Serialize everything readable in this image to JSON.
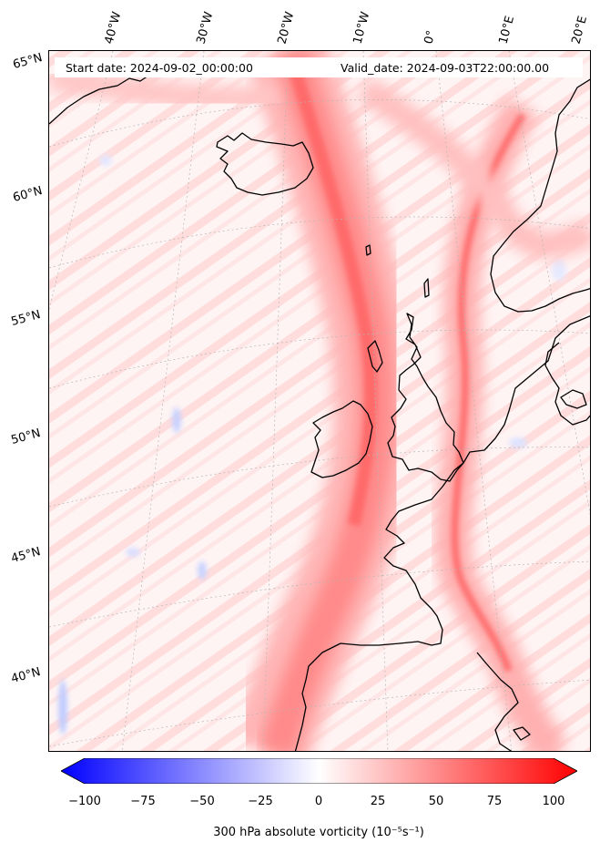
{
  "header": {
    "start_date": "Start date: 2024-09-02_00:00:00",
    "valid_date": "Valid_date: 2024-09-03T22:00:00.00"
  },
  "graticule": {
    "longitude_labels": [
      "40°W",
      "30°W",
      "20°W",
      "10°W",
      "0°",
      "10°E",
      "20°E"
    ],
    "latitude_labels": [
      "65°N",
      "60°N",
      "55°N",
      "50°N",
      "45°N",
      "40°N"
    ]
  },
  "colorbar": {
    "tick_labels": [
      "−100",
      "−75",
      "−50",
      "−25",
      "0",
      "25",
      "50",
      "75",
      "100"
    ],
    "title": "300 hPa absolute vorticity (10⁻⁵s⁻¹)",
    "min": -100,
    "max": 100,
    "low_color": "#0000ff",
    "mid_color": "#ffffff",
    "high_color": "#ff0000"
  },
  "map": {
    "coastline_color": "#000000",
    "jet_color": "#ff4d4d",
    "background_color": "#fff2f2"
  }
}
